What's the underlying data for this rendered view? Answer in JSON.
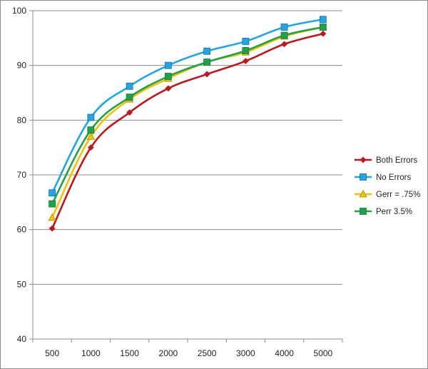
{
  "chart_data": {
    "type": "line",
    "title": "",
    "xlabel": "",
    "ylabel": "",
    "categories": [
      "500",
      "1000",
      "1500",
      "2000",
      "2500",
      "3000",
      "4000",
      "5000"
    ],
    "ylim": [
      40,
      100
    ],
    "yticks": [
      40,
      50,
      60,
      70,
      80,
      90,
      100
    ],
    "grid": "horizontal",
    "legend": "right",
    "smooth": true,
    "series": [
      {
        "name": "Both Errors",
        "color": "#C0161C",
        "marker": "diamond",
        "values": [
          60.2,
          75.0,
          81.4,
          85.8,
          88.4,
          90.8,
          93.9,
          95.8
        ]
      },
      {
        "name": "No Errors",
        "color": "#1EA6E6",
        "marker": "square",
        "values": [
          66.7,
          80.5,
          86.2,
          90.0,
          92.6,
          94.4,
          97.0,
          98.4
        ]
      },
      {
        "name": "Gerr = .75%",
        "color": "#F2C300",
        "marker": "triangle",
        "values": [
          62.2,
          77.0,
          83.8,
          87.6,
          90.6,
          92.4,
          95.3,
          97.0
        ]
      },
      {
        "name": "Perr 3.5%",
        "color": "#1FA34A",
        "marker": "square",
        "values": [
          64.7,
          78.2,
          84.2,
          88.0,
          90.6,
          92.7,
          95.5,
          97.0
        ]
      }
    ]
  }
}
